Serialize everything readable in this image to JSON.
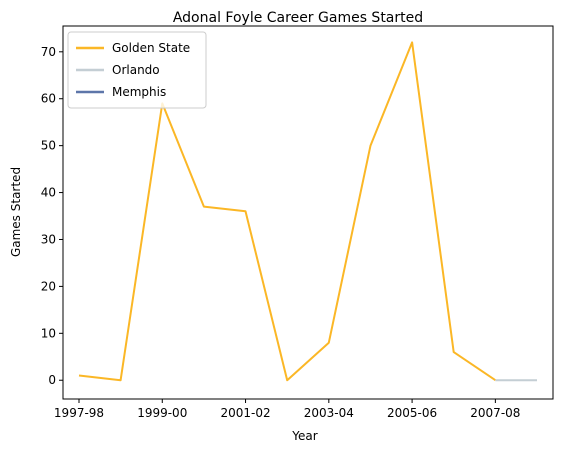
{
  "chart_data": {
    "type": "line",
    "title": "Adonal Foyle Career Games Started",
    "xlabel": "Year",
    "ylabel": "Games Started",
    "x_categories": [
      "1997-98",
      "1998-99",
      "1999-00",
      "2000-01",
      "2001-02",
      "2002-03",
      "2003-04",
      "2004-05",
      "2005-06",
      "2006-07",
      "2007-08",
      "2008-09"
    ],
    "x_tick_labels": [
      "1997-98",
      "1999-00",
      "2001-02",
      "2003-04",
      "2005-06",
      "2007-08"
    ],
    "y_ticks": [
      0,
      10,
      20,
      30,
      40,
      50,
      60,
      70
    ],
    "ylim": [
      -4,
      75.5
    ],
    "grid": false,
    "legend_position": "top-left",
    "series": [
      {
        "name": "Golden State",
        "color": "#fbb726",
        "points": [
          {
            "x": "1997-98",
            "y": 1
          },
          {
            "x": "1998-99",
            "y": 0
          },
          {
            "x": "1999-00",
            "y": 59
          },
          {
            "x": "2000-01",
            "y": 37
          },
          {
            "x": "2001-02",
            "y": 36
          },
          {
            "x": "2002-03",
            "y": 0
          },
          {
            "x": "2003-04",
            "y": 8
          },
          {
            "x": "2004-05",
            "y": 50
          },
          {
            "x": "2005-06",
            "y": 72
          },
          {
            "x": "2006-07",
            "y": 6
          },
          {
            "x": "2007-08",
            "y": 0
          }
        ]
      },
      {
        "name": "Orlando",
        "color": "#c4ced4",
        "points": [
          {
            "x": "2007-08",
            "y": 0
          },
          {
            "x": "2008-09",
            "y": 0
          }
        ]
      },
      {
        "name": "Memphis",
        "color": "#5d76a9",
        "points": []
      }
    ]
  }
}
